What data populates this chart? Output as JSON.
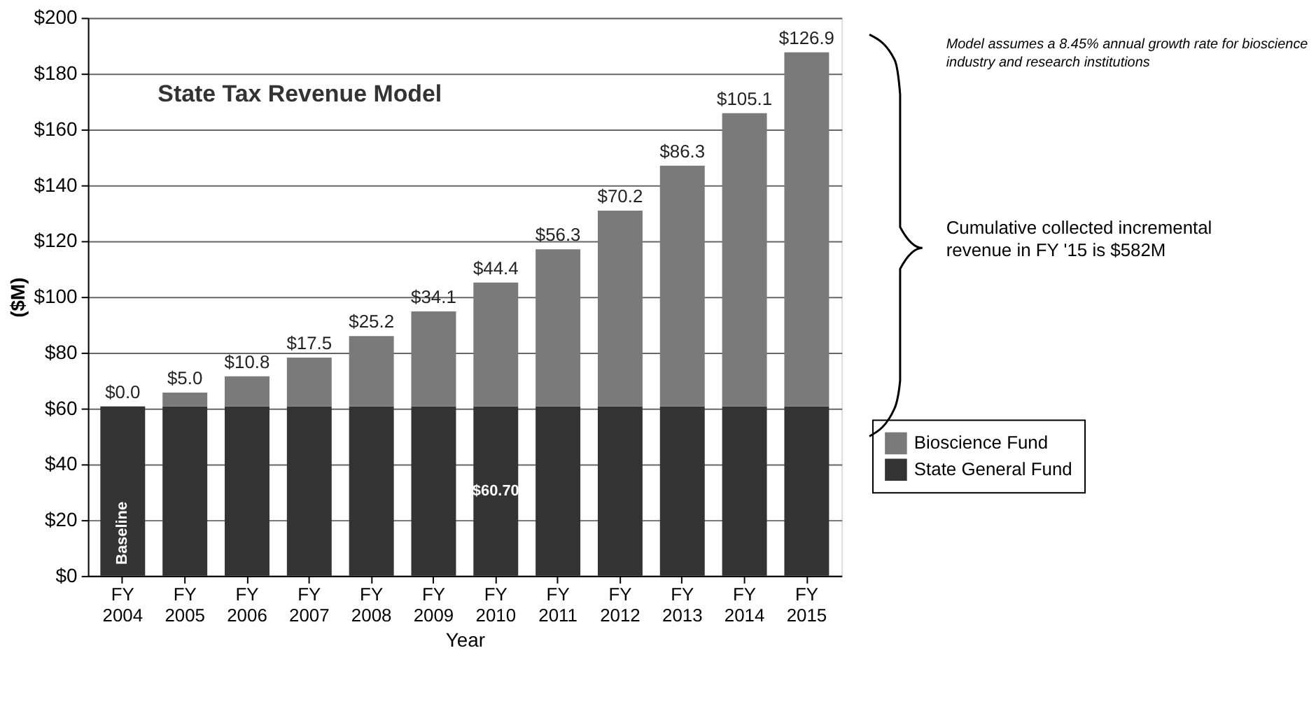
{
  "chart_data": {
    "type": "bar",
    "stacked": true,
    "title": "State Tax Revenue Model",
    "xlabel": "Year",
    "ylabel": "($M)",
    "categories": [
      "FY 2004",
      "FY 2005",
      "FY 2006",
      "FY 2007",
      "FY 2008",
      "FY 2009",
      "FY 2010",
      "FY 2011",
      "FY 2012",
      "FY 2013",
      "FY 2014",
      "FY 2015"
    ],
    "series": [
      {
        "name": "State General Fund",
        "color": "#333333",
        "values": [
          60.7,
          60.7,
          60.7,
          60.7,
          60.7,
          60.7,
          60.7,
          60.7,
          60.7,
          60.7,
          60.7,
          60.7
        ],
        "value_labels": [
          null,
          null,
          null,
          null,
          null,
          null,
          "$60.70",
          null,
          null,
          null,
          null,
          null
        ]
      },
      {
        "name": "Bioscience Fund",
        "color": "#7a7a7a",
        "values": [
          0.0,
          5.0,
          10.8,
          17.5,
          25.2,
          34.1,
          44.4,
          56.3,
          70.2,
          86.3,
          105.1,
          126.9
        ],
        "value_labels": [
          "$0.0",
          "$5.0",
          "$10.8",
          "$17.5",
          "$25.2",
          "$34.1",
          "$44.4",
          "$56.3",
          "$70.2",
          "$86.3",
          "$105.1",
          "$126.9"
        ]
      }
    ],
    "ylim": [
      0,
      200
    ],
    "yticks": [
      {
        "value": 0,
        "label": "$0"
      },
      {
        "value": 20,
        "label": "$20"
      },
      {
        "value": 40,
        "label": "$40"
      },
      {
        "value": 60,
        "label": "$60"
      },
      {
        "value": 80,
        "label": "$80"
      },
      {
        "value": 100,
        "label": "$100"
      },
      {
        "value": 120,
        "label": "$120"
      },
      {
        "value": 140,
        "label": "$140"
      },
      {
        "value": 160,
        "label": "$160"
      },
      {
        "value": 180,
        "label": "$180"
      },
      {
        "value": 200,
        "label": "$200"
      }
    ],
    "grid": "y",
    "legend": "right",
    "annotations": [
      "Baseline",
      "Model assumes a 8.45% annual growth rate for bioscience industry and research institutions",
      "Cumulative collected incremental revenue in FY '15 is $582M"
    ]
  }
}
